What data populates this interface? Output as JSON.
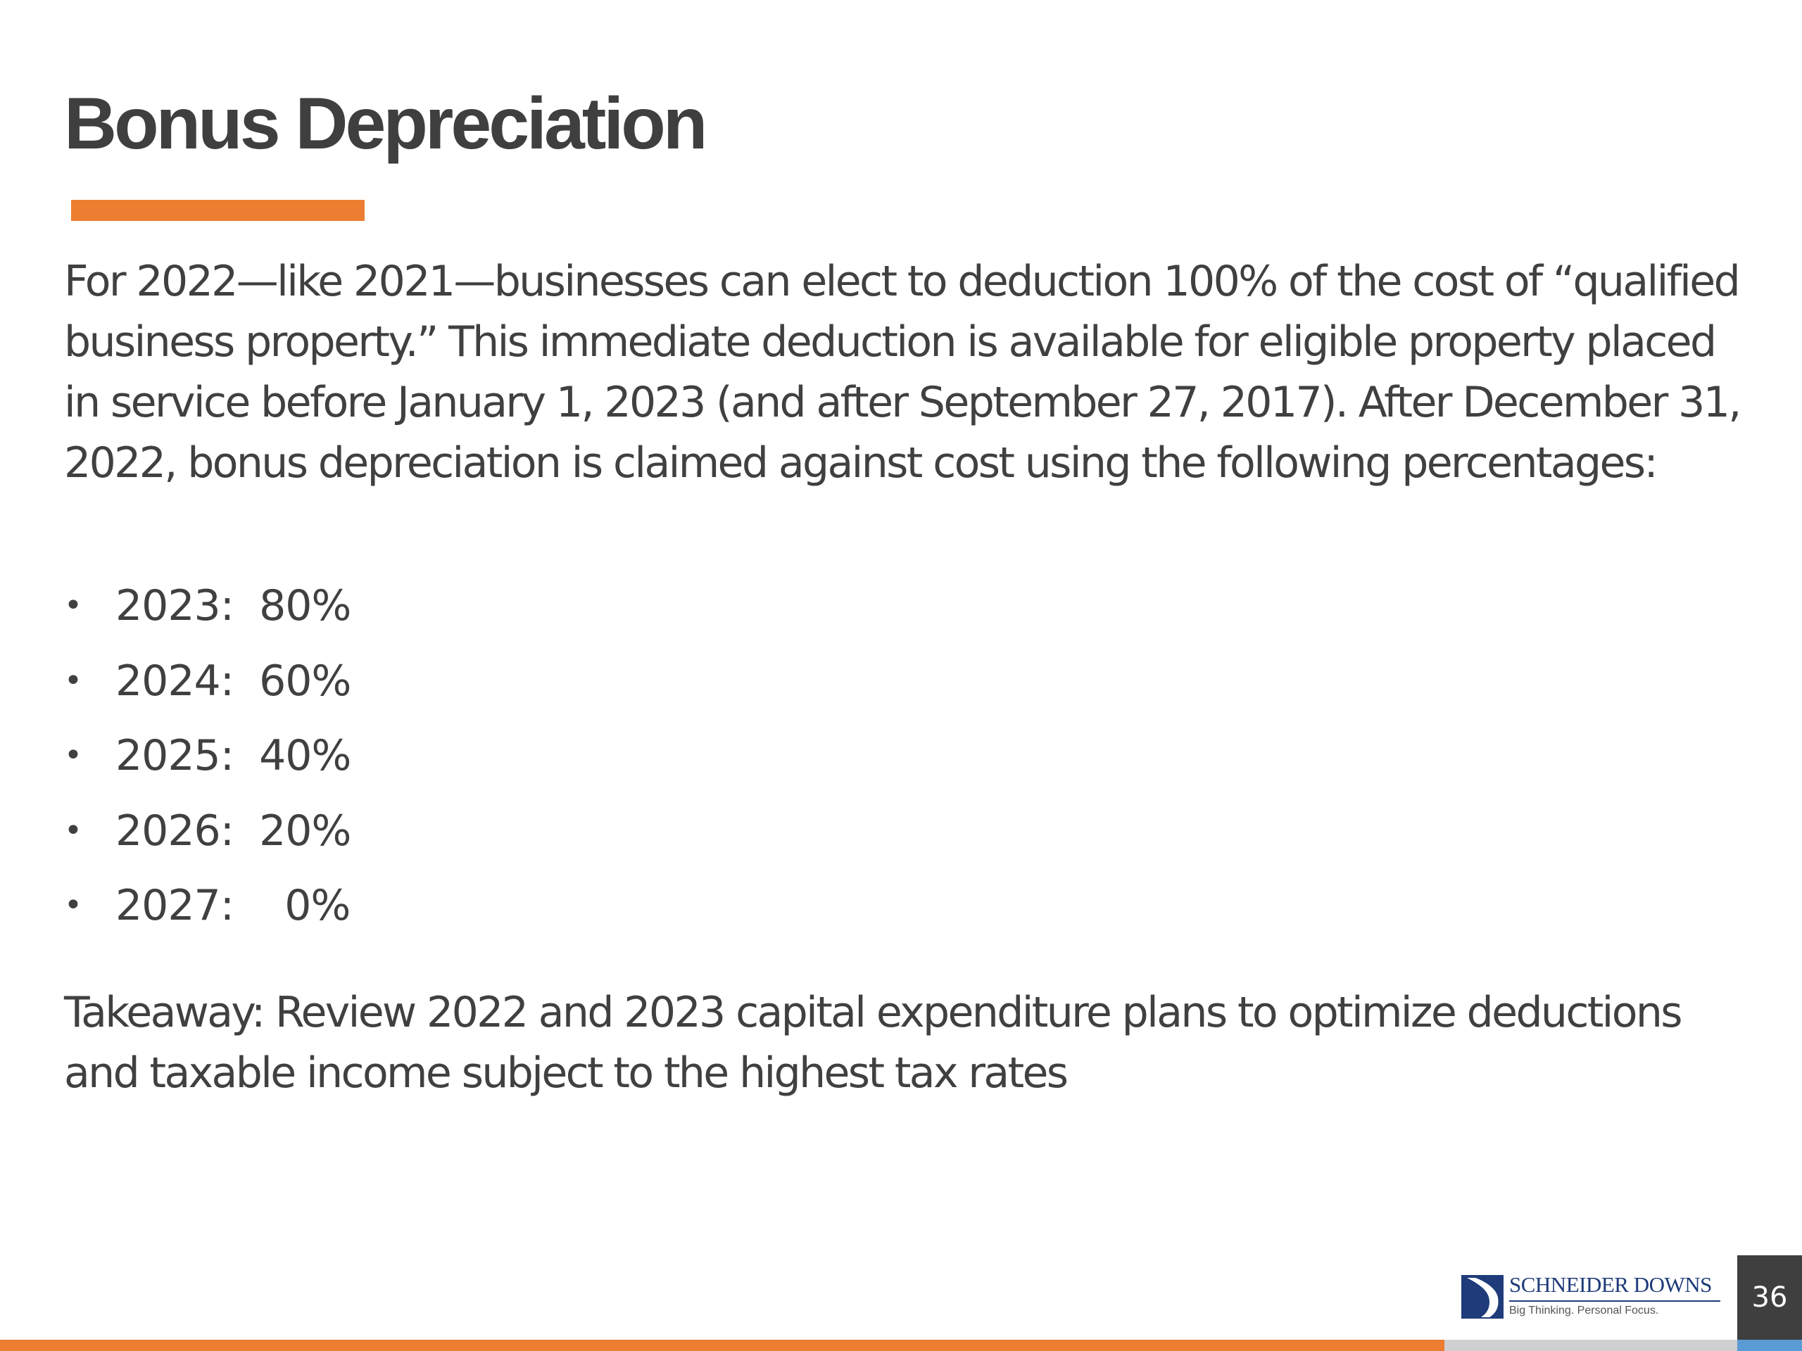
{
  "slide": {
    "title": "Bonus Depreciation",
    "intro": "For 2022—like 2021—businesses can elect to deduction 100% of the cost of “qualified business property.” This immediate deduction is available for eligible property placed in service before January 1, 2023 (and after September 27, 2017). After December 31, 2022, bonus depreciation is claimed against cost using the following percentages:",
    "bullets": [
      {
        "year": "2023:",
        "percent": "80%"
      },
      {
        "year": "2024:",
        "percent": "60%"
      },
      {
        "year": "2025:",
        "percent": "40%"
      },
      {
        "year": "2026:",
        "percent": "20%"
      },
      {
        "year": "2027:",
        "percent": "  0%"
      }
    ],
    "takeaway": "Takeaway:  Review 2022 and 2023 capital expenditure plans to optimize deductions and taxable income subject to the highest tax rates"
  },
  "footer": {
    "logo_name": "SCHNEIDER DOWNS",
    "logo_tagline": "Big Thinking. Personal Focus.",
    "page_number": "36"
  },
  "colors": {
    "accent": "#ED7D31",
    "text": "#404040",
    "logo_blue": "#1f3b7a",
    "page_box": "#3f3f3f",
    "footer_blue": "#5b9bd5",
    "footer_gray": "#d0d0d0"
  }
}
